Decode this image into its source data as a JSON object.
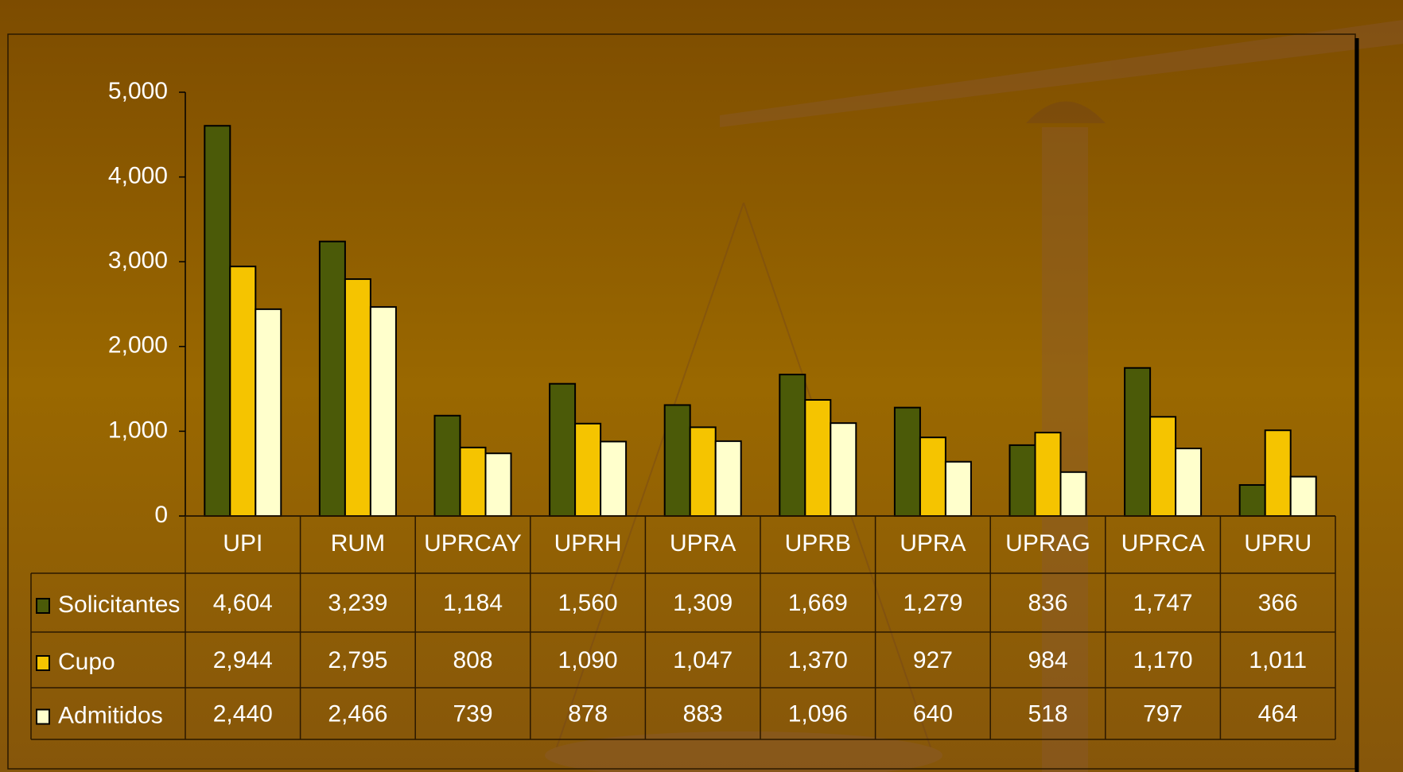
{
  "chart_data": {
    "type": "bar",
    "categories": [
      "UPI",
      "RUM",
      "UPRCAY",
      "UPRH",
      "UPRA",
      "UPRB",
      "UPRA",
      "UPRAG",
      "UPRCA",
      "UPRU"
    ],
    "series": [
      {
        "name": "Solicitantes",
        "color": "#4b5a08",
        "values": [
          4604,
          3239,
          1184,
          1560,
          1309,
          1669,
          1279,
          836,
          1747,
          366
        ],
        "value_labels": [
          "4,604",
          "3,239",
          "1,184",
          "1,560",
          "1,309",
          "1,669",
          "1,279",
          "836",
          "1,747",
          "366"
        ]
      },
      {
        "name": "Cupo",
        "color": "#f5c400",
        "values": [
          2944,
          2795,
          808,
          1090,
          1047,
          1370,
          927,
          984,
          1170,
          1011
        ],
        "value_labels": [
          "2,944",
          "2,795",
          "808",
          "1,090",
          "1,047",
          "1,370",
          "927",
          "984",
          "1,170",
          "1,011"
        ]
      },
      {
        "name": "Admitidos",
        "color": "#ffffcc",
        "values": [
          2440,
          2466,
          739,
          878,
          883,
          1096,
          640,
          518,
          797,
          464
        ],
        "value_labels": [
          "2,440",
          "2,466",
          "739",
          "878",
          "883",
          "1,096",
          "640",
          "518",
          "797",
          "464"
        ]
      }
    ],
    "ylim": [
      0,
      5000
    ],
    "yticks": [
      0,
      {
        "value": 1000,
        "label": "1,000"
      },
      {
        "value": 2000,
        "label": "2,000"
      },
      {
        "value": 3000,
        "label": "3,000"
      },
      {
        "value": 4000,
        "label": "4,000"
      },
      {
        "value": 5000,
        "label": "5,000"
      }
    ],
    "grid": false
  }
}
